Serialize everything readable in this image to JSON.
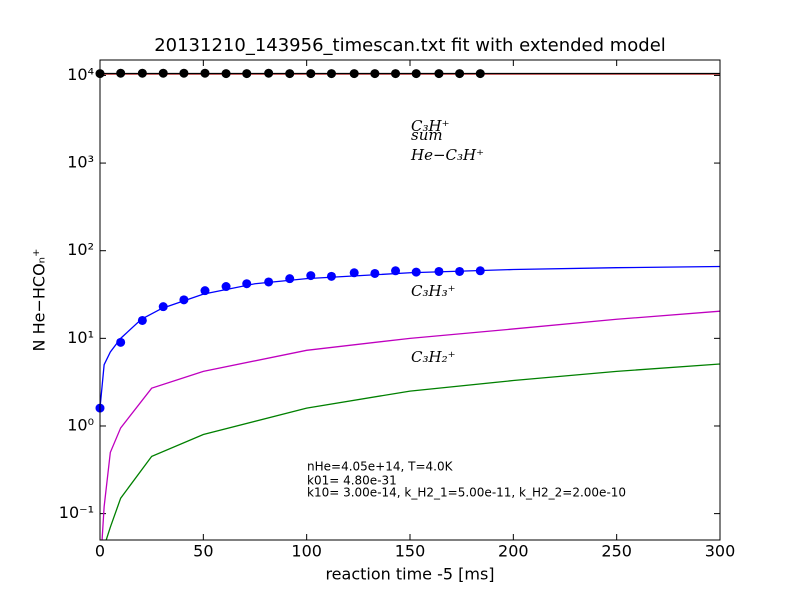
{
  "chart_data": {
    "type": "line",
    "title": "20131210_143956_timescan.txt fit with extended model",
    "xlabel": "reaction time -5 [ms]",
    "ylabel": "N He−HCOₙ⁺",
    "xlim": [
      0,
      300
    ],
    "xticks": [
      0,
      50,
      100,
      150,
      200,
      250,
      300
    ],
    "ylim": [
      0.05,
      15000
    ],
    "log_y": true,
    "yticks": [
      {
        "value": 0.1,
        "label": "10⁻¹"
      },
      {
        "value": 1,
        "label": "10⁰"
      },
      {
        "value": 10,
        "label": "10¹"
      },
      {
        "value": 100,
        "label": "10²"
      },
      {
        "value": 1000,
        "label": "10³"
      },
      {
        "value": 10000,
        "label": "10⁴"
      }
    ],
    "x": [
      0,
      10,
      20.5,
      30.6,
      40.6,
      50.8,
      61,
      71,
      81.6,
      91.8,
      102,
      112,
      123,
      133,
      143,
      153,
      164,
      174,
      184
    ],
    "series": [
      {
        "name": "C₃H⁺",
        "color": "#ff0000",
        "fit": {
          "x": [
            0,
            300
          ],
          "values": [
            10400,
            10400
          ]
        }
      },
      {
        "name": "sum",
        "color": "#000000",
        "fit": {
          "x": [
            0,
            300
          ],
          "values": [
            10500,
            10500
          ]
        },
        "values": [
          10500,
          10600,
          10600,
          10600,
          10600,
          10600,
          10500,
          10500,
          10600,
          10500,
          10500,
          10500,
          10500,
          10500,
          10500,
          10500,
          10500,
          10500,
          10500
        ]
      },
      {
        "name": "He−C₃H⁺",
        "color": "#0000ff",
        "fit": {
          "x": [
            0,
            2,
            5,
            10,
            20,
            30,
            50,
            75,
            100,
            150,
            200,
            250,
            300
          ],
          "values": [
            1.6,
            5,
            7,
            10,
            16.5,
            22,
            32,
            42,
            48,
            56,
            61,
            64,
            66
          ]
        },
        "values": [
          1.6,
          9,
          16,
          23,
          27.5,
          35,
          39,
          42,
          44,
          48,
          52,
          51,
          56,
          55,
          59,
          57,
          58,
          58,
          59
        ]
      },
      {
        "name": "C₃H₃⁺",
        "color": "#bf00bf",
        "fit": {
          "x": [
            1,
            2,
            5,
            10,
            25,
            50,
            100,
            150,
            200,
            250,
            300
          ],
          "values": [
            0.05,
            0.12,
            0.5,
            0.95,
            2.7,
            4.2,
            7.3,
            10,
            12.8,
            16.5,
            20.4
          ]
        }
      },
      {
        "name": "C₃H₂⁺",
        "color": "#008000",
        "fit": {
          "x": [
            3,
            5,
            10,
            25,
            50,
            100,
            150,
            200,
            250,
            300
          ],
          "values": [
            0.05,
            0.07,
            0.15,
            0.45,
            0.8,
            1.6,
            2.5,
            3.3,
            4.2,
            5.1
          ]
        }
      }
    ],
    "annotation": [
      "nHe=4.05e+14, T=4.0K",
      "k01= 4.80e-31",
      "k10= 3.00e-14, k_H2_1=5.00e-11, k_H2_2=2.00e-10"
    ]
  }
}
